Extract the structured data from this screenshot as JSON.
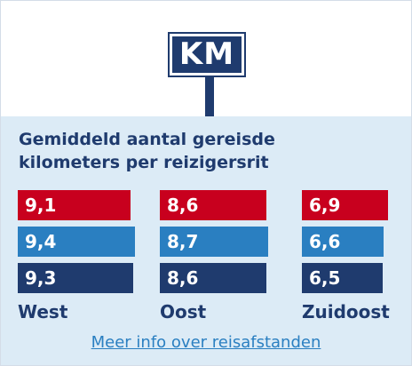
{
  "sign": {
    "text": "KM"
  },
  "chart_data": {
    "type": "bar",
    "title": "Gemiddeld aantal gereisde kilometers per reizigersrit",
    "categories": [
      "West",
      "Oost",
      "Zuidoost"
    ],
    "series": [
      {
        "values": [
          9.1,
          8.6,
          6.9
        ],
        "labels": [
          "9,1",
          "8,6",
          "6,9"
        ],
        "color": "#c8001e"
      },
      {
        "values": [
          9.4,
          8.7,
          6.6
        ],
        "labels": [
          "9,4",
          "8,7",
          "6,6"
        ],
        "color": "#2a7fc1"
      },
      {
        "values": [
          9.3,
          8.6,
          6.5
        ],
        "labels": [
          "9,3",
          "8,6",
          "6,5"
        ],
        "color": "#1f3b6e"
      }
    ]
  },
  "link": {
    "text": "Meer info over reisafstanden"
  }
}
